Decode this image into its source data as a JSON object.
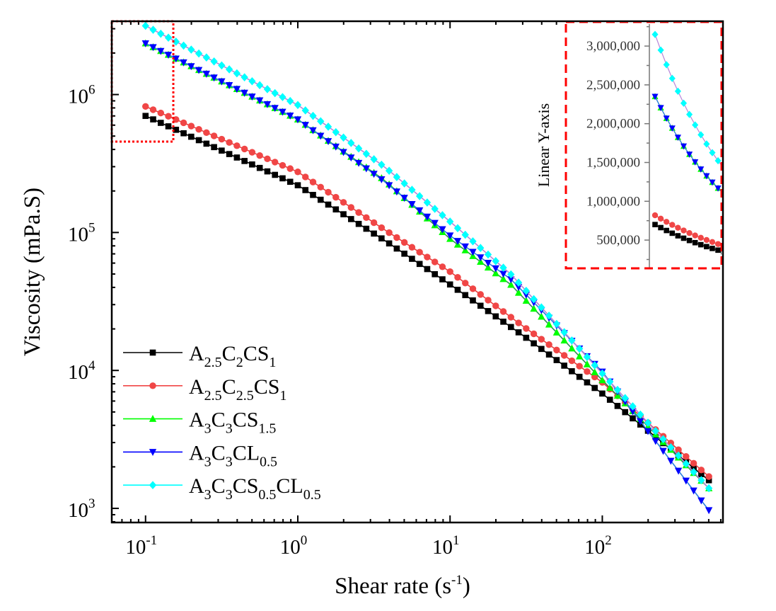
{
  "chart_data": {
    "type": "line",
    "title": "",
    "xscale": "log",
    "yscale": "log",
    "xlim": [
      0.06,
      620
    ],
    "ylim": [
      790,
      3400000
    ],
    "xlabel": {
      "text": "Shear rate (s",
      "sup": "-1",
      "close": ")"
    },
    "ylabel": "Viscosity (mPa.S)",
    "x_ticks": [
      {
        "value": 0.1,
        "base": "10",
        "exp": "-1"
      },
      {
        "value": 1,
        "base": "10",
        "exp": "0"
      },
      {
        "value": 10,
        "base": "10",
        "exp": "1"
      },
      {
        "value": 100,
        "base": "10",
        "exp": "2"
      }
    ],
    "y_ticks": [
      {
        "value": 1000,
        "base": "10",
        "exp": "3"
      },
      {
        "value": 10000,
        "base": "10",
        "exp": "4"
      },
      {
        "value": 100000,
        "base": "10",
        "exp": "5"
      },
      {
        "value": 1000000,
        "base": "10",
        "exp": "6"
      }
    ],
    "points_per_decade": 20,
    "x_start": 0.1,
    "x_end": 500,
    "legend_position": "bottom-left",
    "series": [
      {
        "name": "A2.5C2CS1",
        "label_parts": [
          [
            "A",
            0
          ],
          [
            "2.5",
            1
          ],
          [
            "C",
            0
          ],
          [
            "2",
            1
          ],
          [
            "CS",
            0
          ],
          [
            "1",
            1
          ]
        ],
        "marker": "square",
        "marker_color": "#000000",
        "line_color": "#000000",
        "points": [
          [
            0.1,
            700000
          ],
          [
            1,
            220000
          ],
          [
            3.7,
            88000
          ],
          [
            10,
            42000
          ],
          [
            30,
            18000
          ],
          [
            100,
            6800
          ],
          [
            500,
            1600
          ]
        ]
      },
      {
        "name": "A2.5C2.5CS1",
        "label_parts": [
          [
            "A",
            0
          ],
          [
            "2.5",
            1
          ],
          [
            "C",
            0
          ],
          [
            "2.5",
            1
          ],
          [
            "CS",
            0
          ],
          [
            "1",
            1
          ]
        ],
        "marker": "circle",
        "marker_color": "#f04646",
        "line_color": "#e83a3a",
        "points": [
          [
            0.1,
            820000
          ],
          [
            1,
            275000
          ],
          [
            3.7,
            105000
          ],
          [
            10,
            52000
          ],
          [
            30,
            21000
          ],
          [
            100,
            8200
          ],
          [
            500,
            1700
          ]
        ]
      },
      {
        "name": "A3C3CS1.5",
        "label_parts": [
          [
            "A",
            0
          ],
          [
            "3",
            1
          ],
          [
            "C",
            0
          ],
          [
            "3",
            1
          ],
          [
            "CS",
            0
          ],
          [
            "1.5",
            1
          ]
        ],
        "marker": "triangle-up",
        "marker_color": "#00ff00",
        "line_color": "#2e8b57",
        "points": [
          [
            0.1,
            2350000
          ],
          [
            1,
            660000
          ],
          [
            3.7,
            240000
          ],
          [
            10,
            90000
          ],
          [
            25,
            42000
          ],
          [
            100,
            8500
          ],
          [
            500,
            1400
          ]
        ]
      },
      {
        "name": "A3C3CL0.5",
        "label_parts": [
          [
            "A",
            0
          ],
          [
            "3",
            1
          ],
          [
            "C",
            0
          ],
          [
            "3",
            1
          ],
          [
            "CL",
            0
          ],
          [
            "0.5",
            1
          ]
        ],
        "marker": "triangle-down",
        "marker_color": "#0000ff",
        "line_color": "#2a7de1",
        "points": [
          [
            0.1,
            2350000
          ],
          [
            1,
            660000
          ],
          [
            3.7,
            235000
          ],
          [
            10,
            95000
          ],
          [
            25,
            46000
          ],
          [
            100,
            9800
          ],
          [
            500,
            970
          ]
        ]
      },
      {
        "name": "A3C3CS0.5CL0.5",
        "label_parts": [
          [
            "A",
            0
          ],
          [
            "3",
            1
          ],
          [
            "C",
            0
          ],
          [
            "3",
            1
          ],
          [
            "CS",
            0
          ],
          [
            "0.5",
            1
          ],
          [
            "CL",
            0
          ],
          [
            "0.5",
            1
          ]
        ],
        "marker": "diamond",
        "marker_color": "#00ffff",
        "line_color": "#b784d8",
        "points": [
          [
            0.1,
            3150000
          ],
          [
            1,
            840000
          ],
          [
            3.7,
            300000
          ],
          [
            10,
            120000
          ],
          [
            25,
            50000
          ],
          [
            100,
            9500
          ],
          [
            500,
            1400
          ]
        ]
      }
    ],
    "inset": {
      "ylabel": "Linear Y-axis",
      "yscale": "linear",
      "ylim": [
        136000,
        3320000
      ],
      "xlim": [
        0.1,
        0.37
      ],
      "y_ticks": [
        {
          "value": 500000,
          "label": "500,000"
        },
        {
          "value": 1000000,
          "label": "1,000,000"
        },
        {
          "value": 1500000,
          "label": "1,500,000"
        },
        {
          "value": 2000000,
          "label": "2,000,000"
        },
        {
          "value": 2500000,
          "label": "2,500,000"
        },
        {
          "value": 3000000,
          "label": "3,000,000"
        }
      ],
      "border_color": "#ff0000"
    },
    "zoom_region_color": "#ff0000"
  }
}
